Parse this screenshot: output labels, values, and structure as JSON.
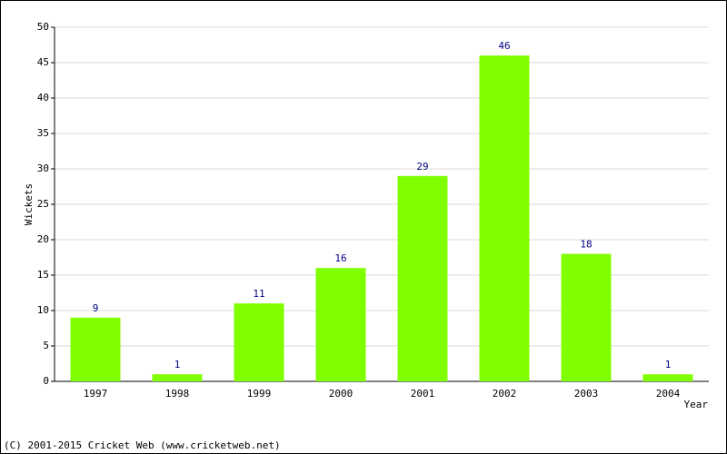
{
  "chart_data": {
    "type": "bar",
    "categories": [
      "1997",
      "1998",
      "1999",
      "2000",
      "2001",
      "2002",
      "2003",
      "2004"
    ],
    "values": [
      9,
      1,
      11,
      16,
      29,
      46,
      18,
      1
    ],
    "color": "#80ff00",
    "label_color": "#000080",
    "x_label": "Year",
    "y_label": "Wickets",
    "ylim": [
      0,
      50
    ],
    "yticks": [
      0,
      5,
      10,
      15,
      20,
      25,
      30,
      35,
      40,
      45,
      50
    ],
    "grid": true,
    "footer": "(C) 2001-2015 Cricket Web (www.cricketweb.net)"
  }
}
